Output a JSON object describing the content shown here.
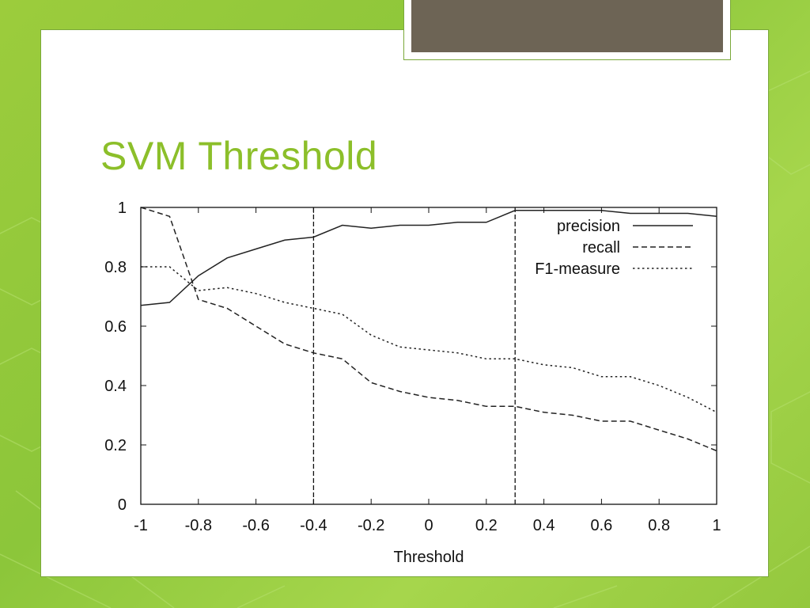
{
  "slide": {
    "title": "SVM Threshold"
  },
  "colors": {
    "background_green": "#8cc63a",
    "title_green": "#8cbf2a",
    "tab_fill": "#6d6455",
    "panel": "#ffffff"
  },
  "chart_data": {
    "type": "line",
    "title": "",
    "xlabel": "Threshold",
    "ylabel": "",
    "xlim": [
      -1,
      1
    ],
    "ylim": [
      0,
      1
    ],
    "xticks": [
      "-1",
      "-0.8",
      "-0.6",
      "-0.4",
      "-0.2",
      "0",
      "0.2",
      "0.4",
      "0.6",
      "0.8",
      "1"
    ],
    "yticks": [
      "0",
      "0.2",
      "0.4",
      "0.6",
      "0.8",
      "1"
    ],
    "grid": false,
    "legend_position": "top-right",
    "vertical_lines": [
      -0.4,
      0.3
    ],
    "x": [
      -1,
      -0.9,
      -0.8,
      -0.7,
      -0.6,
      -0.5,
      -0.4,
      -0.3,
      -0.2,
      -0.1,
      0,
      0.1,
      0.2,
      0.3,
      0.4,
      0.5,
      0.6,
      0.7,
      0.8,
      0.9,
      1
    ],
    "series": [
      {
        "name": "precision",
        "style": "solid",
        "values": [
          0.67,
          0.68,
          0.77,
          0.83,
          0.86,
          0.89,
          0.9,
          0.94,
          0.93,
          0.94,
          0.94,
          0.95,
          0.95,
          0.99,
          0.99,
          0.99,
          0.99,
          0.98,
          0.98,
          0.98,
          0.97
        ]
      },
      {
        "name": "recall",
        "style": "dashed",
        "values": [
          1.0,
          0.97,
          0.69,
          0.66,
          0.6,
          0.54,
          0.51,
          0.49,
          0.41,
          0.38,
          0.36,
          0.35,
          0.33,
          0.33,
          0.31,
          0.3,
          0.28,
          0.28,
          0.25,
          0.22,
          0.18
        ]
      },
      {
        "name": "F1-measure",
        "style": "dotted",
        "values": [
          0.8,
          0.8,
          0.72,
          0.73,
          0.71,
          0.68,
          0.66,
          0.64,
          0.57,
          0.53,
          0.52,
          0.51,
          0.49,
          0.49,
          0.47,
          0.46,
          0.43,
          0.43,
          0.4,
          0.36,
          0.31
        ]
      }
    ]
  }
}
